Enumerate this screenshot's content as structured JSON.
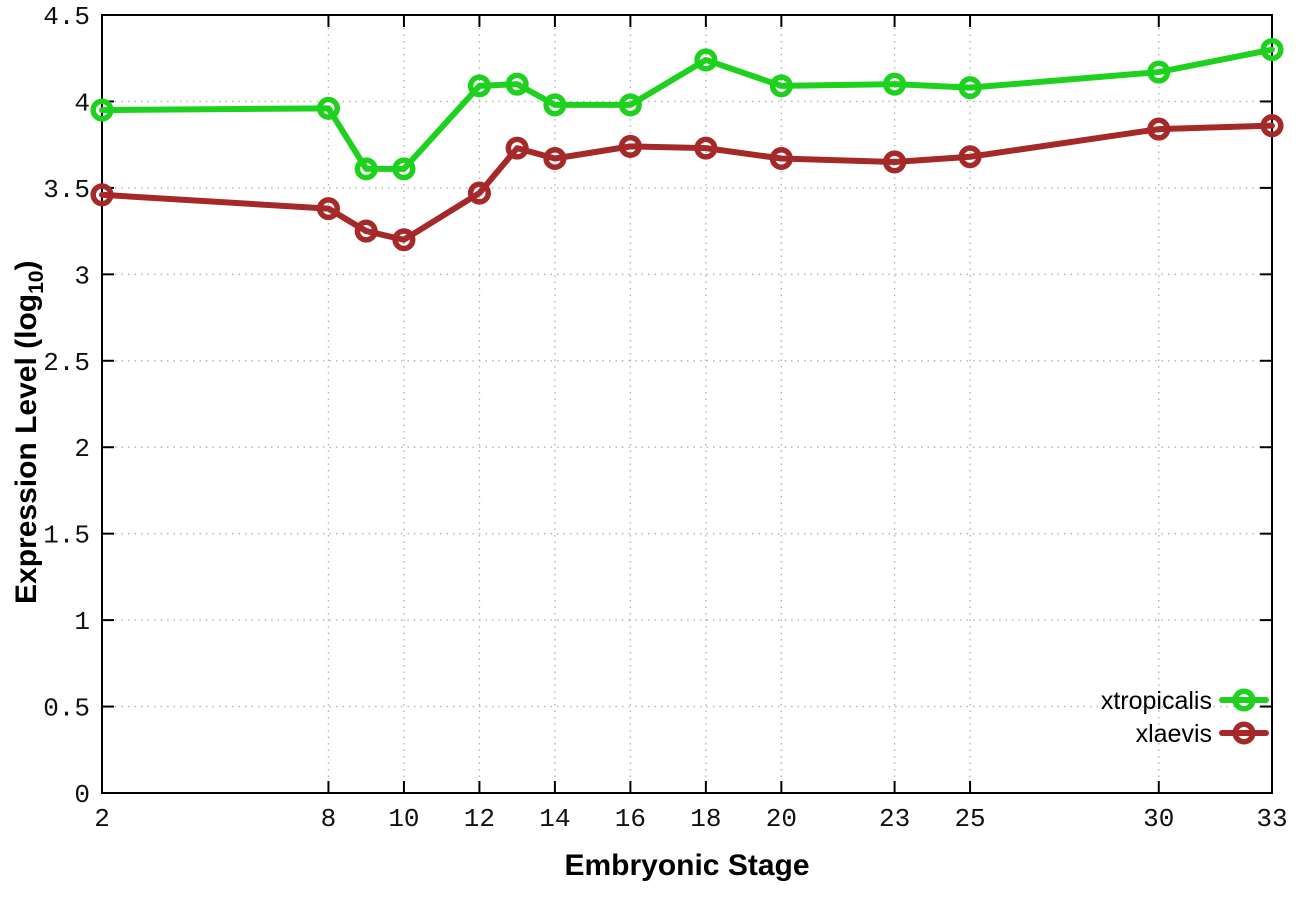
{
  "figure": {
    "background": "#ffffff",
    "ylabel_prefix": "Expression Level (log",
    "ylabel_sub": "10",
    "ylabel_suffix": ")"
  },
  "chart_data": {
    "type": "line",
    "title": "",
    "xlabel": "Embryonic Stage",
    "ylabel": "Expression Level (log10)",
    "x": [
      2,
      8,
      9,
      10,
      12,
      13,
      14,
      16,
      18,
      20,
      23,
      25,
      30,
      33
    ],
    "series": [
      {
        "name": "xtropicalis",
        "color": "#1fd11f",
        "values": [
          3.95,
          3.96,
          3.61,
          3.61,
          4.09,
          4.1,
          3.98,
          3.98,
          4.24,
          4.09,
          4.1,
          4.08,
          4.17,
          4.3
        ]
      },
      {
        "name": "xlaevis",
        "color": "#a62929",
        "values": [
          3.46,
          3.38,
          3.25,
          3.2,
          3.47,
          3.73,
          3.67,
          3.74,
          3.73,
          3.67,
          3.65,
          3.68,
          3.84,
          3.86
        ]
      }
    ],
    "xlim": [
      2,
      33
    ],
    "ylim": [
      0,
      4.5
    ],
    "x_ticks": [
      2,
      8,
      10,
      12,
      14,
      16,
      18,
      20,
      23,
      25,
      30,
      33
    ],
    "x_tick_labels": [
      "2",
      "8",
      "10",
      "12",
      "14",
      "16",
      "18",
      "20",
      "23",
      "25",
      "30",
      "33"
    ],
    "y_ticks": [
      0,
      0.5,
      1,
      1.5,
      2,
      2.5,
      3,
      3.5,
      4,
      4.5
    ],
    "y_tick_labels": [
      "0",
      "0.5",
      "1",
      "1.5",
      "2",
      "2.5",
      "3",
      "3.5",
      "4",
      "4.5"
    ],
    "grid": true,
    "grid_color": "#b3b3b3",
    "legend_position": "bottom-right",
    "legend": [
      "xtropicalis",
      "xlaevis"
    ]
  }
}
